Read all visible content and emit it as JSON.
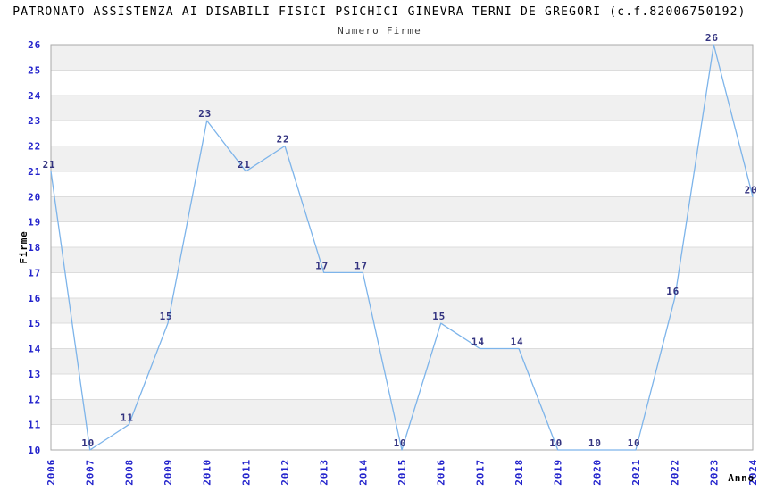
{
  "chart_data": {
    "type": "line",
    "title": "PATRONATO ASSISTENZA AI DISABILI FISICI PSICHICI GINEVRA TERNI DE GREGORI (c.f.82006750192)",
    "subtitle": "Numero Firme",
    "xlabel": "Anno",
    "ylabel": "Firme",
    "categories": [
      "2006",
      "2007",
      "2008",
      "2009",
      "2010",
      "2011",
      "2012",
      "2013",
      "2014",
      "2015",
      "2016",
      "2017",
      "2018",
      "2019",
      "2020",
      "2021",
      "2022",
      "2023",
      "2024"
    ],
    "values": [
      21,
      10,
      11,
      15,
      23,
      21,
      22,
      17,
      17,
      10,
      15,
      14,
      14,
      10,
      10,
      10,
      16,
      26,
      20
    ],
    "ylim": [
      10,
      26
    ],
    "ytick_step": 1,
    "grid": true,
    "striped_background": true,
    "legend": "none",
    "colors": {
      "line": "#7db4ea",
      "stripe": "#f0f0f0",
      "grid": "#dcdcdc",
      "border": "#a9a9a9",
      "tick_label": "#2323cc",
      "data_label": "#333380",
      "title": "#000000",
      "subtitle": "#3f3f3f",
      "axis_title": "#000000"
    }
  }
}
